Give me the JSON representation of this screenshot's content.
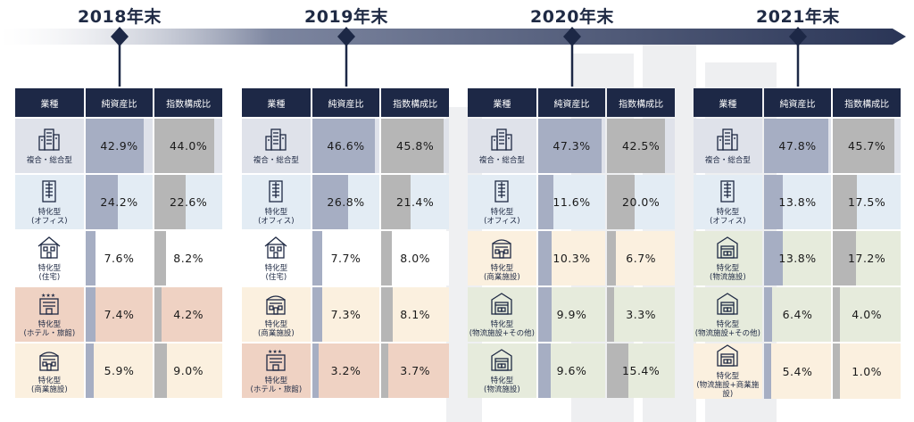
{
  "headers": {
    "type": "業種",
    "nav": "純資産比",
    "index": "指数構成比"
  },
  "colors": {
    "navy": "#1d2846",
    "timeline": "#2e3a5c",
    "nav_bar": "#a6aec3",
    "index_bar": "#b6b6b6",
    "complex": "#dfe2ea",
    "office": "#e3ecf4",
    "residential": "#ffffff",
    "hotel": "#efd2c3",
    "commercial": "#fbf0df",
    "logistics": "#e6ebdc"
  },
  "panels": [
    {
      "year": "2018年末",
      "rows": [
        {
          "icon": "office-tower-icon",
          "cls": "row-complex",
          "label1": "複合・総合型",
          "label2": "",
          "nav": "42.9%",
          "nav_value": 42.9,
          "index": "44.0%",
          "index_value": 44.0
        },
        {
          "icon": "office-building-icon",
          "cls": "row-office",
          "label1": "特化型",
          "label2": "(オフィス)",
          "nav": "24.2%",
          "nav_value": 24.2,
          "index": "22.6%",
          "index_value": 22.6
        },
        {
          "icon": "house-icon",
          "cls": "row-res",
          "label1": "特化型",
          "label2": "(住宅)",
          "nav": "7.6%",
          "nav_value": 7.6,
          "index": "8.2%",
          "index_value": 8.2
        },
        {
          "icon": "hotel-icon",
          "cls": "row-hotel",
          "label1": "特化型",
          "label2": "(ホテル・旅館)",
          "nav": "7.4%",
          "nav_value": 7.4,
          "index": "4.2%",
          "index_value": 4.2
        },
        {
          "icon": "commercial-icon",
          "cls": "row-comm",
          "label1": "特化型",
          "label2": "(商業施設)",
          "nav": "5.9%",
          "nav_value": 5.9,
          "index": "9.0%",
          "index_value": 9.0
        }
      ]
    },
    {
      "year": "2019年末",
      "rows": [
        {
          "icon": "office-tower-icon",
          "cls": "row-complex",
          "label1": "複合・総合型",
          "label2": "",
          "nav": "46.6%",
          "nav_value": 46.6,
          "index": "45.8%",
          "index_value": 45.8
        },
        {
          "icon": "office-building-icon",
          "cls": "row-office",
          "label1": "特化型",
          "label2": "(オフィス)",
          "nav": "26.8%",
          "nav_value": 26.8,
          "index": "21.4%",
          "index_value": 21.4
        },
        {
          "icon": "house-icon",
          "cls": "row-res",
          "label1": "特化型",
          "label2": "(住宅)",
          "nav": "7.7%",
          "nav_value": 7.7,
          "index": "8.0%",
          "index_value": 8.0
        },
        {
          "icon": "commercial-icon",
          "cls": "row-comm",
          "label1": "特化型",
          "label2": "(商業施設)",
          "nav": "7.3%",
          "nav_value": 7.3,
          "index": "8.1%",
          "index_value": 8.1
        },
        {
          "icon": "hotel-icon",
          "cls": "row-hotel",
          "label1": "特化型",
          "label2": "(ホテル・旅館)",
          "nav": "3.2%",
          "nav_value": 3.2,
          "index": "3.7%",
          "index_value": 3.7
        }
      ]
    },
    {
      "year": "2020年末",
      "rows": [
        {
          "icon": "office-tower-icon",
          "cls": "row-complex",
          "label1": "複合・総合型",
          "label2": "",
          "nav": "47.3%",
          "nav_value": 47.3,
          "index": "42.5%",
          "index_value": 42.5
        },
        {
          "icon": "office-building-icon",
          "cls": "row-office",
          "label1": "特化型",
          "label2": "(オフィス)",
          "nav": "11.6%",
          "nav_value": 11.6,
          "index": "20.0%",
          "index_value": 20.0
        },
        {
          "icon": "commercial-icon",
          "cls": "row-comm",
          "label1": "特化型",
          "label2": "(商業施設)",
          "nav": "10.3%",
          "nav_value": 10.3,
          "index": "6.7%",
          "index_value": 6.7
        },
        {
          "icon": "warehouse-icon",
          "cls": "row-logi",
          "label1": "特化型",
          "label2": "(物流施設+その他)",
          "nav": "9.9%",
          "nav_value": 9.9,
          "index": "3.3%",
          "index_value": 3.3
        },
        {
          "icon": "warehouse-icon",
          "cls": "row-logi",
          "label1": "特化型",
          "label2": "(物流施設)",
          "nav": "9.6%",
          "nav_value": 9.6,
          "index": "15.4%",
          "index_value": 15.4
        }
      ]
    },
    {
      "year": "2021年末",
      "rows": [
        {
          "icon": "office-tower-icon",
          "cls": "row-complex",
          "label1": "複合・総合型",
          "label2": "",
          "nav": "47.8%",
          "nav_value": 47.8,
          "index": "45.7%",
          "index_value": 45.7
        },
        {
          "icon": "office-building-icon",
          "cls": "row-office",
          "label1": "特化型",
          "label2": "(オフィス)",
          "nav": "13.8%",
          "nav_value": 13.8,
          "index": "17.5%",
          "index_value": 17.5
        },
        {
          "icon": "warehouse-icon",
          "cls": "row-logi",
          "label1": "特化型",
          "label2": "(物流施設)",
          "nav": "13.8%",
          "nav_value": 13.8,
          "index": "17.2%",
          "index_value": 17.2
        },
        {
          "icon": "warehouse-icon",
          "cls": "row-logi",
          "label1": "特化型",
          "label2": "(物流施設+その他)",
          "nav": "6.4%",
          "nav_value": 6.4,
          "index": "4.0%",
          "index_value": 4.0
        },
        {
          "icon": "warehouse-icon",
          "cls": "row-comm",
          "label1": "特化型",
          "label2": "(物流施設+商業施設)",
          "nav": "5.4%",
          "nav_value": 5.4,
          "index": "1.0%",
          "index_value": 1.0
        }
      ]
    }
  ]
}
